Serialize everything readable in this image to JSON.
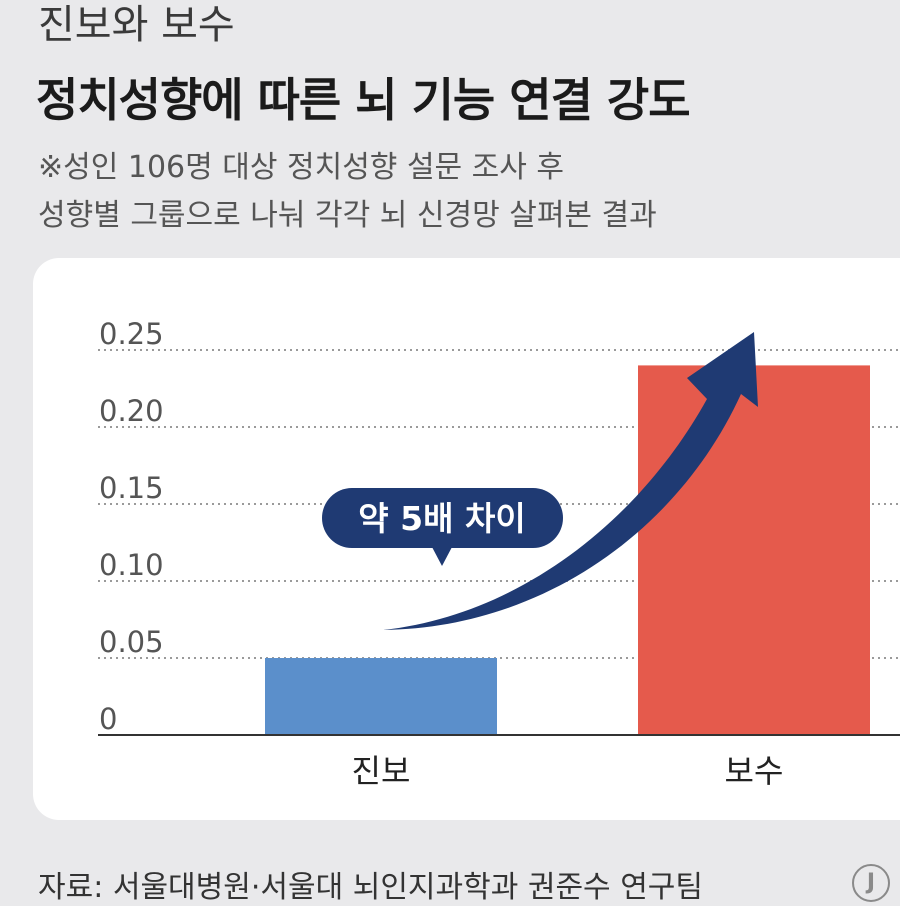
{
  "header": {
    "subtitle": "진보와 보수",
    "title": "정치성향에 따른 뇌 기능 연결 강도",
    "note_line1": "※성인 106명 대상 정치성향 설문 조사 후",
    "note_line2": "성향별 그룹으로 나눠 각각 뇌 신경망 살펴본 결과"
  },
  "chart_data": {
    "type": "bar",
    "categories": [
      "진보",
      "보수"
    ],
    "values": [
      0.05,
      0.24
    ],
    "colors": [
      "#5b8fcb",
      "#e55a4c"
    ],
    "ylim": [
      0,
      0.25
    ],
    "yticks": [
      "0",
      "0.05",
      "0.10",
      "0.15",
      "0.20",
      "0.25"
    ],
    "grid": "dotted horizontal",
    "annotation": "약 5배 차이",
    "arrow_color": "#1f3a73"
  },
  "footer": {
    "source": "자료: 서울대병원·서울대 뇌인지과학과 권준수 연구팀",
    "logo": "J"
  }
}
